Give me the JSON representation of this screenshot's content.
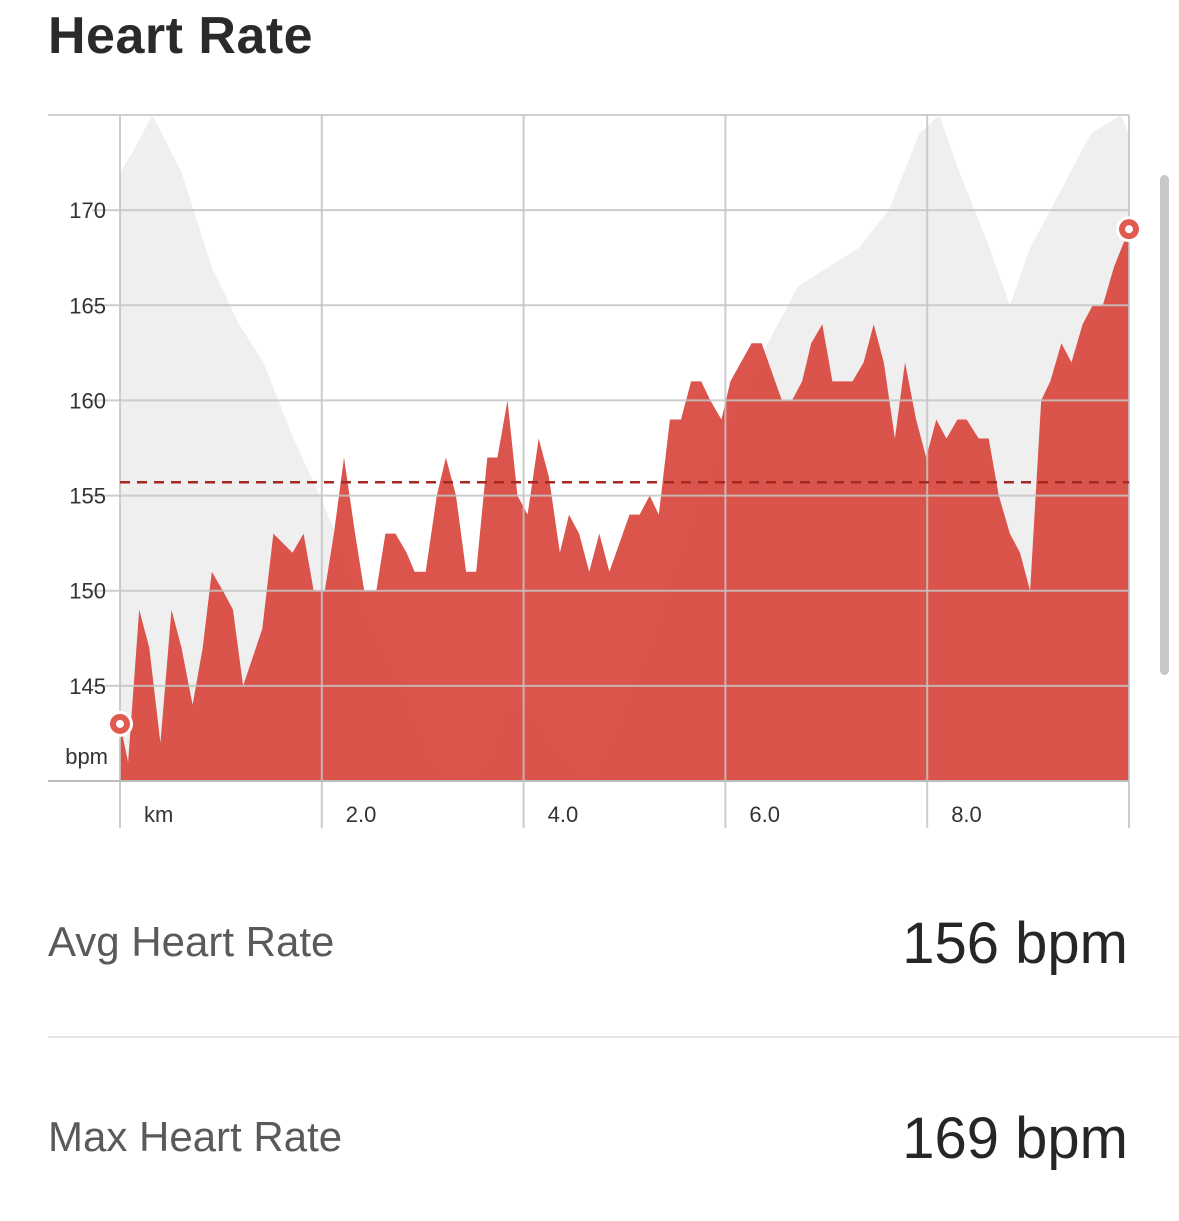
{
  "page": {
    "title": "Heart Rate"
  },
  "stats": {
    "avg_label": "Avg Heart Rate",
    "avg_value": "156 bpm",
    "max_label": "Max Heart Rate",
    "max_value": "169 bpm"
  },
  "colors": {
    "hr_fill": "#d9473d",
    "elevation_fill": "#efefef",
    "avg_line": "#a32a22",
    "grid": "#c4c4c4",
    "marker": "#e05a50"
  },
  "chart_data": {
    "type": "area",
    "ylabel": "bpm",
    "xlabel": "km",
    "ylim": [
      140,
      175
    ],
    "xlim": [
      0,
      10.0
    ],
    "y_ticks": [
      145,
      150,
      155,
      160,
      165,
      170
    ],
    "y_tick_labels": [
      "145",
      "150",
      "155",
      "160",
      "165",
      "170"
    ],
    "x_ticks": [
      0,
      2.0,
      4.0,
      6.0,
      8.0,
      10.0
    ],
    "x_tick_labels": [
      "km",
      "2.0",
      "4.0",
      "6.0",
      "8.0",
      ""
    ],
    "grid": true,
    "avg_line": 155.7,
    "heart_rate": {
      "x": [
        0.0,
        0.08,
        0.19,
        0.29,
        0.4,
        0.51,
        0.61,
        0.72,
        0.82,
        0.91,
        1.02,
        1.12,
        1.22,
        1.41,
        1.52,
        1.71,
        1.82,
        1.92,
        2.03,
        2.12,
        2.22,
        2.33,
        2.42,
        2.54,
        2.63,
        2.73,
        2.84,
        2.92,
        3.03,
        3.14,
        3.23,
        3.33,
        3.43,
        3.53,
        3.64,
        3.74,
        3.84,
        3.94,
        4.04,
        4.15,
        4.25,
        4.36,
        4.45,
        4.55,
        4.65,
        4.75,
        4.85,
        5.05,
        5.15,
        5.25,
        5.34,
        5.45,
        5.56,
        5.66,
        5.76,
        5.85,
        5.96,
        6.05,
        6.26,
        6.36,
        6.56,
        6.66,
        6.76,
        6.85,
        6.96,
        7.06,
        7.16,
        7.26,
        7.37,
        7.47,
        7.57,
        7.68,
        7.78,
        7.89,
        7.99,
        8.09,
        8.19,
        8.3,
        8.39,
        8.51,
        8.61,
        8.71,
        8.82,
        8.92,
        9.02,
        9.13,
        9.22,
        9.33,
        9.43,
        9.54,
        9.64,
        9.74,
        9.85,
        10.0
      ],
      "y": [
        143,
        141,
        149,
        147,
        142,
        149,
        147,
        144,
        147,
        151,
        150,
        149,
        145,
        148,
        153,
        152,
        153,
        150,
        150,
        153,
        157,
        153,
        150,
        150,
        153,
        153,
        152,
        151,
        151,
        155,
        157,
        155,
        151,
        151,
        157,
        157,
        160,
        155,
        154,
        158,
        156,
        152,
        154,
        153,
        151,
        153,
        151,
        154,
        154,
        155,
        154,
        159,
        159,
        161,
        161,
        160,
        159,
        161,
        163,
        163,
        160,
        160,
        161,
        163,
        164,
        161,
        161,
        161,
        162,
        164,
        162,
        158,
        162,
        159,
        157,
        159,
        158,
        159,
        159,
        158,
        158,
        155,
        153,
        152,
        150,
        160,
        161,
        163,
        162,
        164,
        165,
        165,
        167,
        169
      ]
    },
    "elevation_background": {
      "x": [
        0.0,
        0.12,
        0.32,
        0.61,
        0.91,
        1.18,
        1.42,
        1.72,
        1.98,
        2.22,
        2.52,
        2.82,
        3.12,
        3.32,
        3.62,
        3.82,
        4.02,
        4.32,
        4.62,
        4.92,
        5.22,
        5.52,
        5.82,
        6.12,
        6.42,
        6.72,
        7.02,
        7.32,
        7.62,
        7.92,
        8.12,
        8.32,
        8.62,
        8.82,
        9.02,
        9.32,
        9.62,
        9.92,
        10.0
      ],
      "y": [
        172,
        173,
        175,
        172,
        167,
        164,
        162,
        158,
        155,
        152,
        148,
        145,
        141,
        140,
        141,
        144,
        144,
        142,
        140,
        143,
        147,
        152,
        156,
        160,
        163,
        166,
        167,
        168,
        170,
        174,
        175,
        172,
        168,
        165,
        168,
        171,
        174,
        175,
        174
      ]
    },
    "markers": [
      {
        "x": 0.0,
        "y": 143
      },
      {
        "x": 10.0,
        "y": 169
      }
    ]
  }
}
